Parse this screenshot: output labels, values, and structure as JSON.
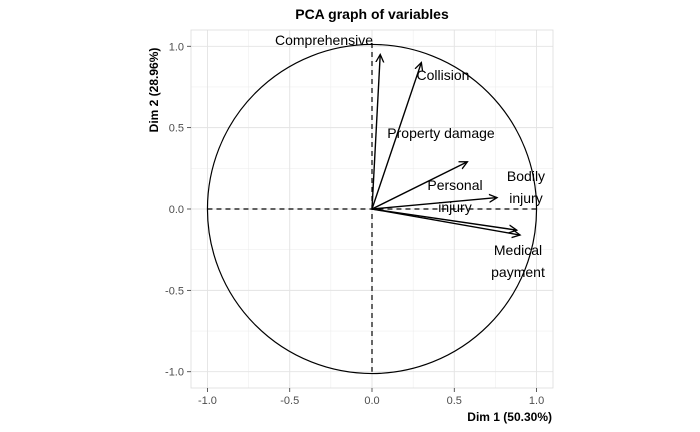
{
  "chart_data": {
    "type": "scatter",
    "subtype": "pca-correlation-circle",
    "title": "PCA graph of variables",
    "xlabel": "Dim 1 (50.30%)",
    "ylabel": "Dim 2 (28.96%)",
    "xlim": [
      -1.1,
      1.1
    ],
    "ylim": [
      -1.1,
      1.1
    ],
    "x_ticks": [
      -1.0,
      -0.5,
      0.0,
      0.5,
      1.0
    ],
    "y_ticks": [
      -1.0,
      -0.5,
      0.0,
      0.5,
      1.0
    ],
    "x_tick_labels": [
      "-1.0",
      "-0.5",
      "0.0",
      "0.5",
      "1.0"
    ],
    "y_tick_labels": [
      "-1.0",
      "-0.5",
      "0.0",
      "0.5",
      "1.0"
    ],
    "grid": true,
    "unit_circle": true,
    "variables": [
      {
        "name": "Comprehensive",
        "x": 0.05,
        "y": 0.95,
        "label_lines": [
          "Comprehensive"
        ]
      },
      {
        "name": "Collision",
        "x": 0.3,
        "y": 0.9,
        "label_lines": [
          "Collision"
        ]
      },
      {
        "name": "Property damage",
        "x": 0.58,
        "y": 0.29,
        "label_lines": [
          "Property damage"
        ]
      },
      {
        "name": "Bodily injury",
        "x": 0.76,
        "y": 0.07,
        "label_lines": [
          "Bodily",
          "injury"
        ]
      },
      {
        "name": "Personal injury",
        "x": 0.88,
        "y": -0.13,
        "label_lines": [
          "Personal",
          "injury"
        ]
      },
      {
        "name": "Medical payment",
        "x": 0.9,
        "y": -0.16,
        "label_lines": [
          "Medical",
          "payment"
        ]
      }
    ],
    "colors": {
      "arrows": "#000000",
      "circle": "#000000",
      "grid": "#ebebeb",
      "axes_dash": "#000000"
    }
  }
}
